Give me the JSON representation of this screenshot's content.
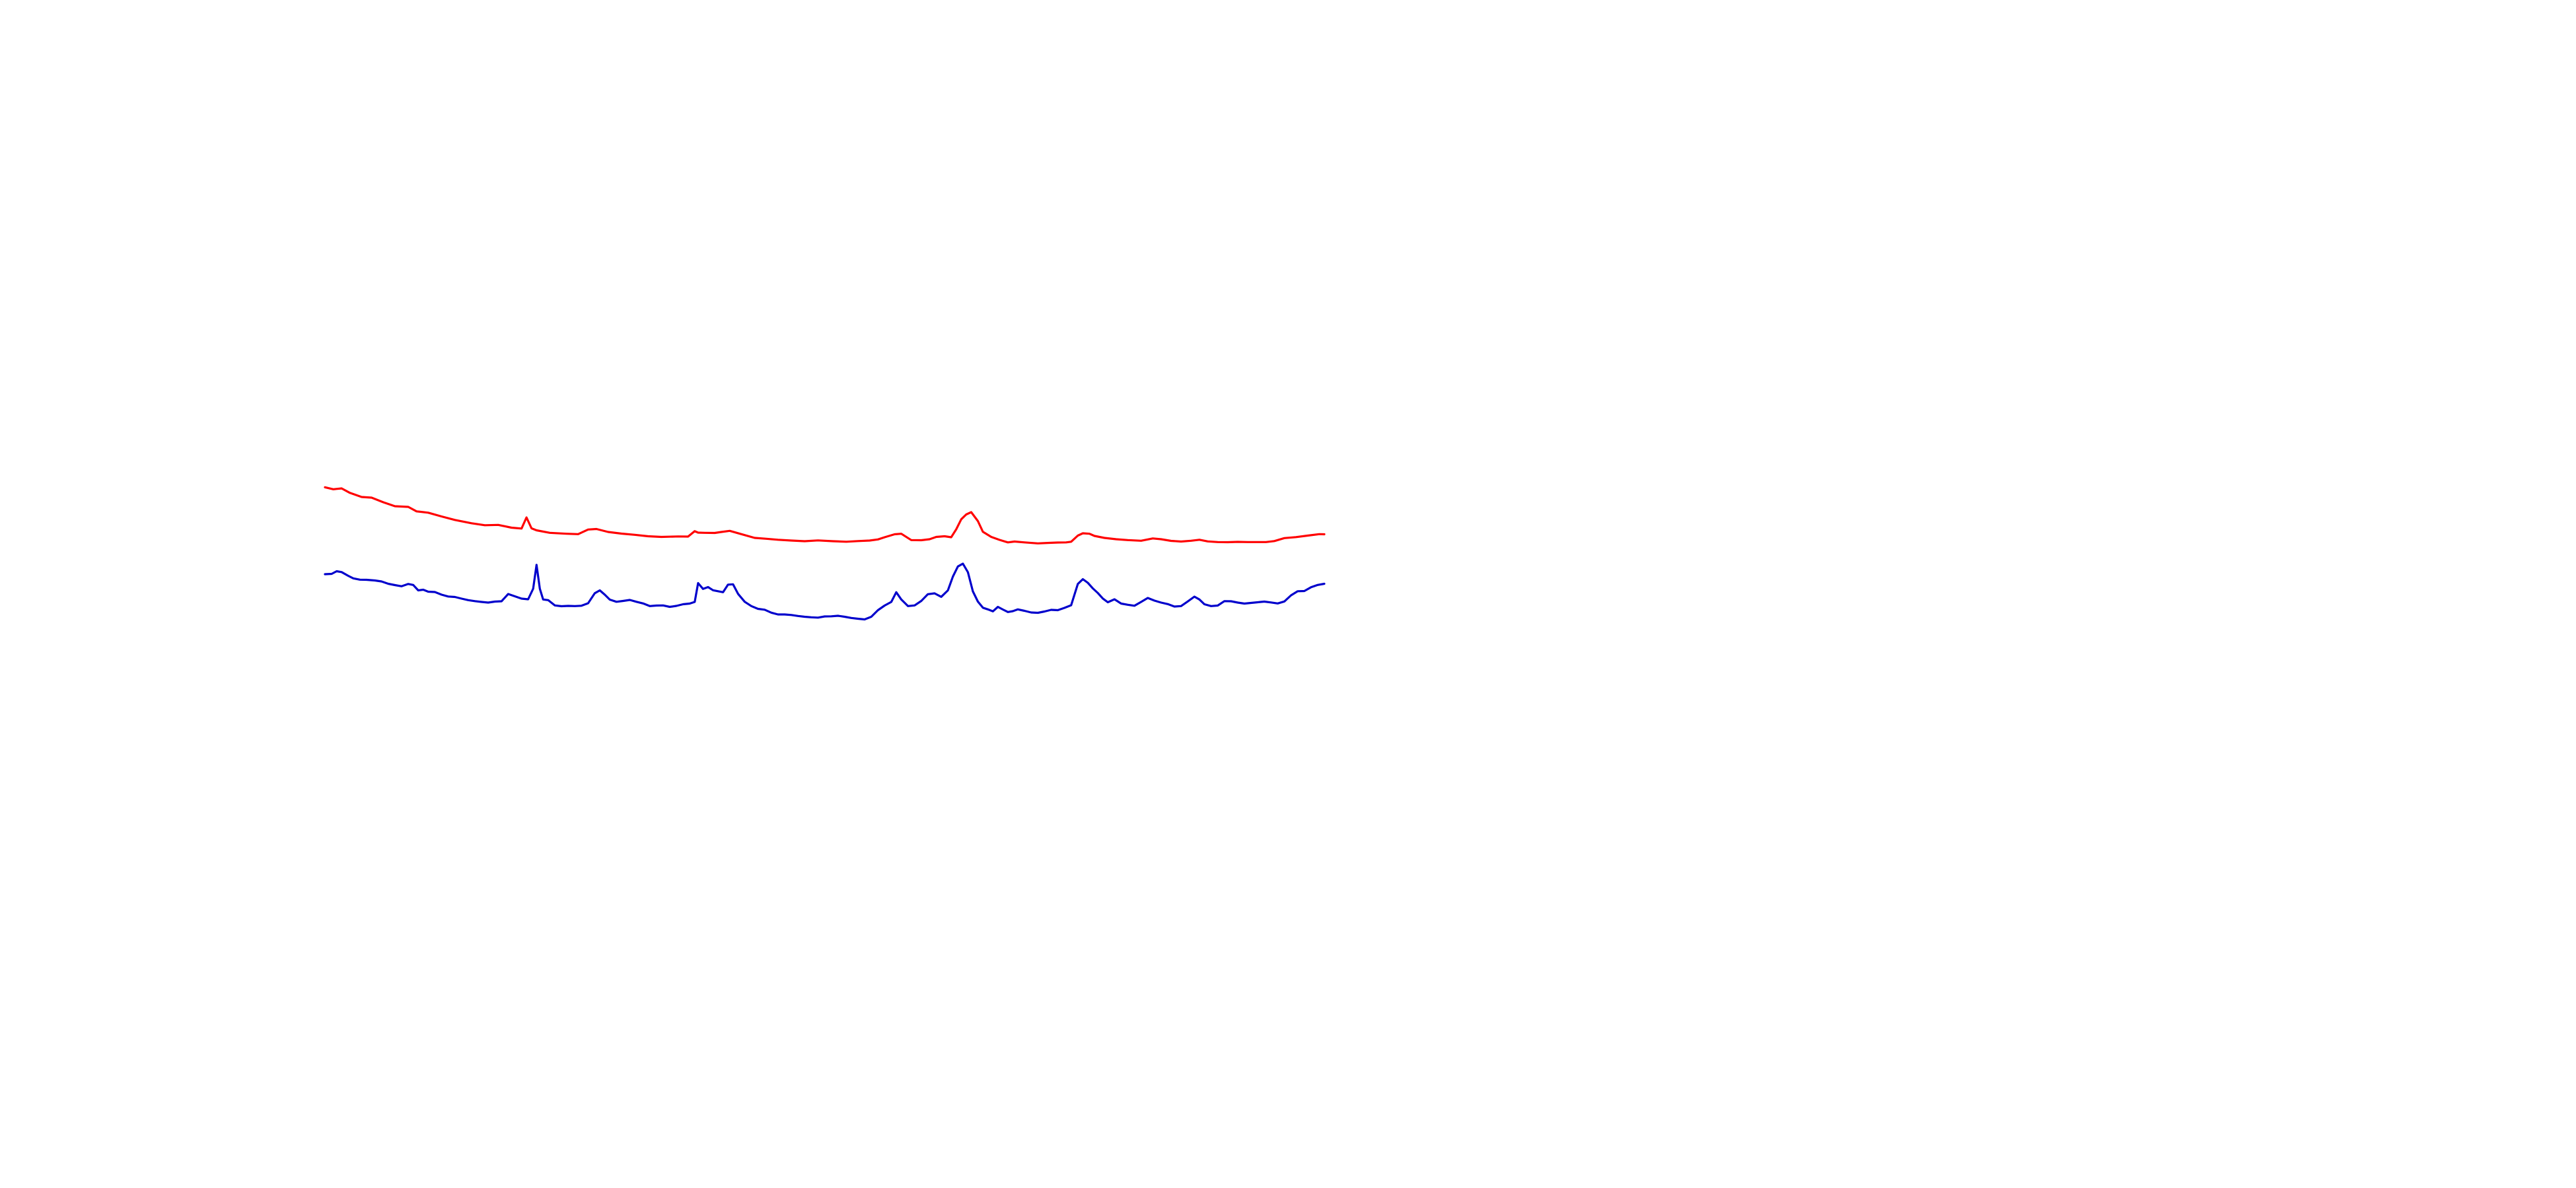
{
  "chart_data": {
    "type": "line",
    "title": "",
    "xlabel": "",
    "ylabel": "",
    "grid": false,
    "axes_visible": false,
    "legend": "none",
    "xlim": [
      0,
      600
    ],
    "ylim": [
      0,
      250
    ],
    "series": [
      {
        "color": "#ff0000",
        "points": [
          [
            0,
            249.5
          ],
          [
            5,
            248.3
          ],
          [
            10,
            248.8
          ],
          [
            15,
            246.1
          ],
          [
            22,
            243.6
          ],
          [
            28,
            243.2
          ],
          [
            35,
            240.4
          ],
          [
            42,
            238.0
          ],
          [
            50,
            237.6
          ],
          [
            55,
            234.9
          ],
          [
            62,
            234.1
          ],
          [
            70,
            231.8
          ],
          [
            78,
            229.7
          ],
          [
            88,
            227.7
          ],
          [
            96,
            226.5
          ],
          [
            104,
            226.7
          ],
          [
            112,
            225.0
          ],
          [
            118,
            224.5
          ],
          [
            121,
            231.2
          ],
          [
            124,
            224.6
          ],
          [
            127,
            223.4
          ],
          [
            135,
            221.9
          ],
          [
            145,
            221.3
          ],
          [
            152,
            221.1
          ],
          [
            158,
            223.9
          ],
          [
            163,
            224.2
          ],
          [
            170,
            222.4
          ],
          [
            178,
            221.4
          ],
          [
            186,
            220.7
          ],
          [
            194,
            219.8
          ],
          [
            202,
            219.4
          ],
          [
            212,
            219.7
          ],
          [
            218,
            219.6
          ],
          [
            222,
            222.9
          ],
          [
            224,
            222.0
          ],
          [
            228,
            221.9
          ],
          [
            234,
            221.8
          ],
          [
            238,
            222.4
          ],
          [
            243,
            223.1
          ],
          [
            250,
            221.1
          ],
          [
            258,
            218.8
          ],
          [
            265,
            218.3
          ],
          [
            272,
            217.7
          ],
          [
            280,
            217.2
          ],
          [
            288,
            216.8
          ],
          [
            296,
            217.3
          ],
          [
            305,
            216.8
          ],
          [
            313,
            216.5
          ],
          [
            320,
            216.9
          ],
          [
            327,
            217.2
          ],
          [
            332,
            217.9
          ],
          [
            336,
            219.2
          ],
          [
            342,
            221.0
          ],
          [
            346,
            221.3
          ],
          [
            352,
            217.5
          ],
          [
            358,
            217.4
          ],
          [
            363,
            218.0
          ],
          [
            367,
            219.4
          ],
          [
            372,
            219.8
          ],
          [
            376,
            219.2
          ],
          [
            379,
            224.0
          ],
          [
            382,
            230.1
          ],
          [
            385,
            233.0
          ],
          [
            388,
            234.4
          ],
          [
            392,
            229.0
          ],
          [
            395,
            222.5
          ],
          [
            400,
            219.4
          ],
          [
            405,
            217.6
          ],
          [
            410,
            216.1
          ],
          [
            414,
            216.6
          ],
          [
            420,
            216.1
          ],
          [
            428,
            215.5
          ],
          [
            435,
            215.8
          ],
          [
            440,
            216.0
          ],
          [
            445,
            216.1
          ],
          [
            448,
            216.5
          ],
          [
            452,
            220.2
          ],
          [
            455,
            221.6
          ],
          [
            459,
            221.3
          ],
          [
            462,
            220.0
          ],
          [
            468,
            218.8
          ],
          [
            475,
            218.0
          ],
          [
            482,
            217.5
          ],
          [
            490,
            217.1
          ],
          [
            497,
            218.5
          ],
          [
            502,
            218.0
          ],
          [
            508,
            217.0
          ],
          [
            514,
            216.6
          ],
          [
            520,
            217.1
          ],
          [
            525,
            217.7
          ],
          [
            530,
            216.7
          ],
          [
            536,
            216.3
          ],
          [
            542,
            216.2
          ],
          [
            548,
            216.4
          ],
          [
            554,
            216.3
          ],
          [
            560,
            216.3
          ],
          [
            565,
            216.3
          ],
          [
            570,
            216.9
          ],
          [
            576,
            218.7
          ],
          [
            583,
            219.3
          ],
          [
            590,
            220.2
          ],
          [
            597,
            221.1
          ],
          [
            600,
            221.0
          ]
        ]
      },
      {
        "color": "#0000cc",
        "points": [
          [
            0,
            196.8
          ],
          [
            4,
            197.0
          ],
          [
            7,
            198.6
          ],
          [
            10,
            198.1
          ],
          [
            14,
            195.8
          ],
          [
            17,
            194.3
          ],
          [
            21,
            193.5
          ],
          [
            25,
            193.4
          ],
          [
            30,
            193.0
          ],
          [
            34,
            192.4
          ],
          [
            38,
            191.0
          ],
          [
            42,
            190.2
          ],
          [
            46,
            189.5
          ],
          [
            50,
            190.9
          ],
          [
            53,
            190.3
          ],
          [
            56,
            187.0
          ],
          [
            59,
            187.4
          ],
          [
            62,
            186.2
          ],
          [
            66,
            186.0
          ],
          [
            70,
            184.4
          ],
          [
            74,
            183.3
          ],
          [
            78,
            183.0
          ],
          [
            82,
            182.0
          ],
          [
            86,
            181.1
          ],
          [
            90,
            180.5
          ],
          [
            94,
            180.0
          ],
          [
            98,
            179.6
          ],
          [
            102,
            180.2
          ],
          [
            106,
            180.4
          ],
          [
            110,
            184.8
          ],
          [
            114,
            183.4
          ],
          [
            118,
            182.0
          ],
          [
            122,
            181.6
          ],
          [
            125,
            188.0
          ],
          [
            127,
            202.5
          ],
          [
            129,
            188.0
          ],
          [
            131,
            181.5
          ],
          [
            134,
            181.1
          ],
          [
            138,
            177.9
          ],
          [
            142,
            177.4
          ],
          [
            146,
            177.6
          ],
          [
            150,
            177.5
          ],
          [
            154,
            177.7
          ],
          [
            158,
            179.2
          ],
          [
            162,
            185.3
          ],
          [
            165,
            187.0
          ],
          [
            168,
            184.4
          ],
          [
            171,
            181.4
          ],
          [
            175,
            180.1
          ],
          [
            179,
            180.6
          ],
          [
            183,
            181.2
          ],
          [
            187,
            180.1
          ],
          [
            191,
            179.1
          ],
          [
            195,
            177.5
          ],
          [
            199,
            177.8
          ],
          [
            203,
            177.9
          ],
          [
            207,
            177.0
          ],
          [
            211,
            177.6
          ],
          [
            215,
            178.6
          ],
          [
            219,
            179.0
          ],
          [
            222,
            180.0
          ],
          [
            224,
            191.4
          ],
          [
            227,
            187.9
          ],
          [
            230,
            189.0
          ],
          [
            233,
            187.1
          ],
          [
            236,
            186.5
          ],
          [
            239,
            185.9
          ],
          [
            242,
            190.5
          ],
          [
            245,
            190.7
          ],
          [
            248,
            184.9
          ],
          [
            252,
            180.1
          ],
          [
            256,
            177.5
          ],
          [
            260,
            175.8
          ],
          [
            264,
            175.3
          ],
          [
            268,
            173.5
          ],
          [
            272,
            172.4
          ],
          [
            276,
            172.4
          ],
          [
            280,
            172.1
          ],
          [
            284,
            171.5
          ],
          [
            288,
            171.0
          ],
          [
            292,
            170.7
          ],
          [
            296,
            170.5
          ],
          [
            300,
            171.2
          ],
          [
            304,
            171.3
          ],
          [
            308,
            171.6
          ],
          [
            312,
            171.0
          ],
          [
            316,
            170.3
          ],
          [
            320,
            169.8
          ],
          [
            324,
            169.4
          ],
          [
            328,
            171.0
          ],
          [
            332,
            175.0
          ],
          [
            336,
            177.8
          ],
          [
            340,
            180.0
          ],
          [
            343,
            185.9
          ],
          [
            346,
            181.5
          ],
          [
            350,
            177.5
          ],
          [
            354,
            177.9
          ],
          [
            358,
            180.6
          ],
          [
            362,
            184.7
          ],
          [
            366,
            185.2
          ],
          [
            370,
            183.1
          ],
          [
            374,
            187.0
          ],
          [
            377,
            195.4
          ],
          [
            380,
            201.5
          ],
          [
            383,
            203.2
          ],
          [
            386,
            198.0
          ],
          [
            389,
            186.4
          ],
          [
            392,
            180.2
          ],
          [
            395,
            176.5
          ],
          [
            398,
            175.5
          ],
          [
            401,
            174.3
          ],
          [
            404,
            177.0
          ],
          [
            407,
            175.4
          ],
          [
            410,
            173.9
          ],
          [
            413,
            174.4
          ],
          [
            416,
            175.5
          ],
          [
            420,
            174.6
          ],
          [
            424,
            173.6
          ],
          [
            428,
            173.4
          ],
          [
            432,
            174.2
          ],
          [
            436,
            175.2
          ],
          [
            440,
            175.0
          ],
          [
            444,
            176.4
          ],
          [
            448,
            178.0
          ],
          [
            452,
            190.9
          ],
          [
            455,
            193.8
          ],
          [
            458,
            191.6
          ],
          [
            461,
            188.2
          ],
          [
            464,
            185.4
          ],
          [
            467,
            182.1
          ],
          [
            470,
            179.8
          ],
          [
            474,
            181.6
          ],
          [
            478,
            179.0
          ],
          [
            482,
            178.3
          ],
          [
            486,
            177.7
          ],
          [
            490,
            180.0
          ],
          [
            494,
            182.4
          ],
          [
            498,
            180.8
          ],
          [
            502,
            179.6
          ],
          [
            506,
            178.7
          ],
          [
            510,
            177.2
          ],
          [
            514,
            177.5
          ],
          [
            518,
            180.3
          ],
          [
            522,
            183.2
          ],
          [
            525,
            181.5
          ],
          [
            528,
            178.6
          ],
          [
            532,
            177.5
          ],
          [
            536,
            177.8
          ],
          [
            540,
            180.5
          ],
          [
            544,
            180.4
          ],
          [
            548,
            179.6
          ],
          [
            552,
            179.0
          ],
          [
            556,
            179.4
          ],
          [
            560,
            179.8
          ],
          [
            564,
            180.2
          ],
          [
            568,
            179.7
          ],
          [
            572,
            179.1
          ],
          [
            576,
            180.3
          ],
          [
            580,
            184.0
          ],
          [
            584,
            186.5
          ],
          [
            588,
            186.6
          ],
          [
            592,
            188.9
          ],
          [
            596,
            190.3
          ],
          [
            600,
            191.0
          ]
        ]
      }
    ]
  }
}
